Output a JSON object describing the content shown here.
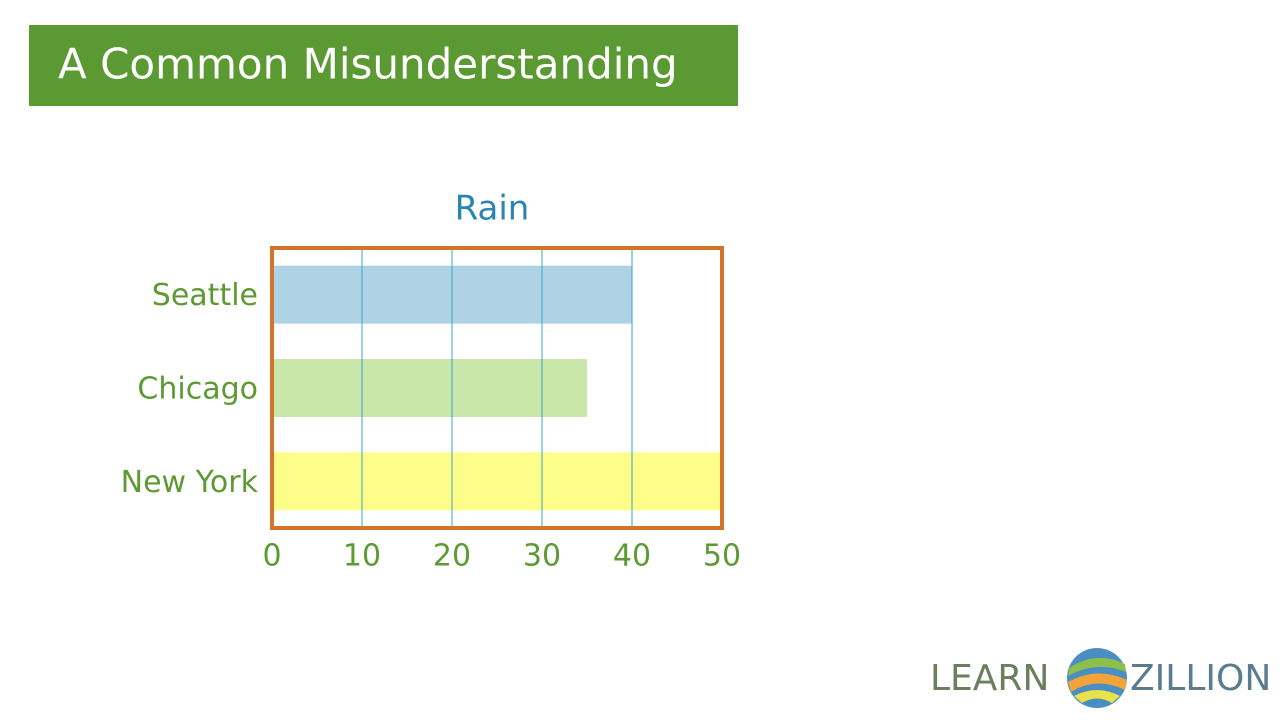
{
  "header": {
    "title": "A Common Misunderstanding"
  },
  "chart_data": {
    "type": "bar",
    "orientation": "horizontal",
    "title": "Rain",
    "categories": [
      "Seattle",
      "Chicago",
      "New York"
    ],
    "values": [
      40,
      35,
      50
    ],
    "colors": [
      "#aed3e4",
      "#c9e7a9",
      "#fdfd8a"
    ],
    "xlim": [
      0,
      50
    ],
    "xticks": [
      0,
      10,
      20,
      30,
      40,
      50
    ],
    "grid": true
  },
  "logo": {
    "left": "LEARN",
    "right": "ZILLION"
  }
}
